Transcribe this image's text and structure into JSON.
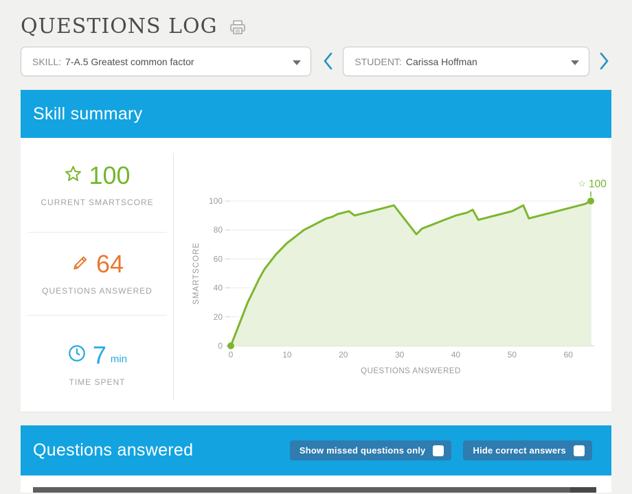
{
  "page": {
    "title": "QUESTIONS LOG"
  },
  "filters": {
    "skill": {
      "label": "SKILL:",
      "value": "7-A.5 Greatest common factor"
    },
    "student": {
      "label": "STUDENT:",
      "value": "Carissa Hoffman"
    }
  },
  "skill_summary": {
    "heading": "Skill summary",
    "stats": [
      {
        "icon": "star-icon",
        "value": "100",
        "unit": "",
        "label": "CURRENT SMARTSCORE",
        "color": "#74b62e"
      },
      {
        "icon": "pencil-icon",
        "value": "64",
        "unit": "",
        "label": "QUESTIONS ANSWERED",
        "color": "#e8782f"
      },
      {
        "icon": "clock-icon",
        "value": "7",
        "unit": "min",
        "label": "TIME SPENT",
        "color": "#29a9e1"
      }
    ]
  },
  "chart_data": {
    "type": "area",
    "title": "",
    "xlabel": "QUESTIONS ANSWERED",
    "ylabel": "SMARTSCORE",
    "xlim": [
      0,
      64
    ],
    "ylim": [
      0,
      100
    ],
    "x_ticks": [
      0,
      10,
      20,
      30,
      40,
      50,
      60
    ],
    "y_ticks": [
      0,
      20,
      40,
      60,
      80,
      100
    ],
    "grid": true,
    "legend": "none",
    "line_color": "#7cb62f",
    "fill_color": "#e9f2dc",
    "annotation": {
      "icon": "star",
      "text": "100"
    },
    "points": [
      [
        0,
        0
      ],
      [
        1,
        10
      ],
      [
        2,
        20
      ],
      [
        3,
        30
      ],
      [
        4,
        38
      ],
      [
        5,
        46
      ],
      [
        6,
        53
      ],
      [
        7,
        58
      ],
      [
        8,
        63
      ],
      [
        9,
        67
      ],
      [
        10,
        71
      ],
      [
        11,
        74
      ],
      [
        12,
        77
      ],
      [
        13,
        80
      ],
      [
        14,
        82
      ],
      [
        15,
        84
      ],
      [
        16,
        86
      ],
      [
        17,
        88
      ],
      [
        18,
        89
      ],
      [
        19,
        91
      ],
      [
        20,
        92
      ],
      [
        21,
        93
      ],
      [
        22,
        90
      ],
      [
        24,
        92
      ],
      [
        26,
        94
      ],
      [
        28,
        96
      ],
      [
        29,
        97
      ],
      [
        33,
        77
      ],
      [
        34,
        81
      ],
      [
        36,
        84
      ],
      [
        38,
        87
      ],
      [
        40,
        90
      ],
      [
        42,
        92
      ],
      [
        43,
        94
      ],
      [
        44,
        87
      ],
      [
        46,
        89
      ],
      [
        48,
        91
      ],
      [
        50,
        93
      ],
      [
        52,
        97
      ],
      [
        53,
        88
      ],
      [
        55,
        90
      ],
      [
        57,
        92
      ],
      [
        59,
        94
      ],
      [
        61,
        96
      ],
      [
        63,
        98
      ],
      [
        64,
        100
      ]
    ]
  },
  "questions_answered": {
    "heading": "Questions answered",
    "buttons": [
      {
        "label": "Show missed questions only",
        "checked": false
      },
      {
        "label": "Hide correct answers",
        "checked": false
      }
    ]
  },
  "theme": {
    "banner_blue": "#13a3e0",
    "button_blue": "#2e7cb0",
    "page_bg": "#f1f1ef"
  }
}
